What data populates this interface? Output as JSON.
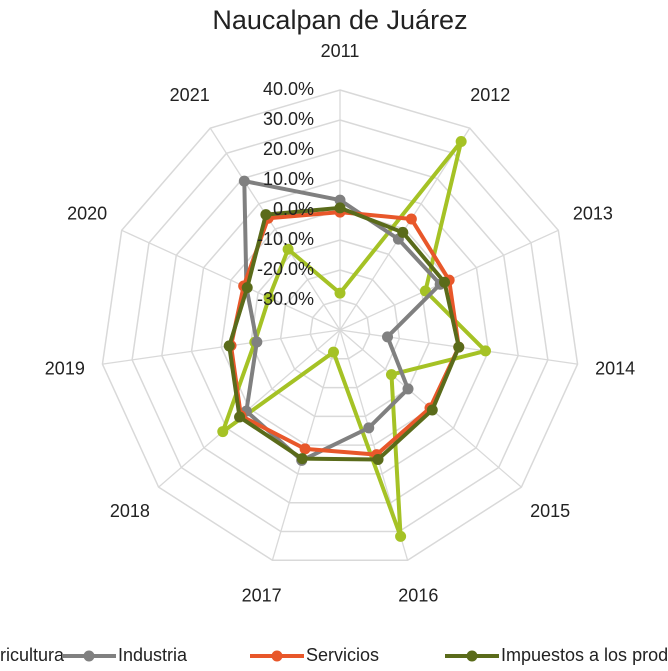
{
  "chart_data": {
    "type": "radar",
    "title": "Naucalpan de Juárez",
    "categories": [
      "2011",
      "2012",
      "2013",
      "2014",
      "2015",
      "2016",
      "2017",
      "2018",
      "2019",
      "2020",
      "2021"
    ],
    "ylim": [
      -40,
      40
    ],
    "yticks": [
      {
        "value": -30,
        "label": "-30.0%"
      },
      {
        "value": -20,
        "label": "-20.0%"
      },
      {
        "value": -10,
        "label": "-10.0%"
      },
      {
        "value": 0,
        "label": "0.0%"
      },
      {
        "value": 10,
        "label": "10.0%"
      },
      {
        "value": 20,
        "label": "20.0%"
      },
      {
        "value": 30,
        "label": "30.0%"
      },
      {
        "value": 40,
        "label": "40.0%"
      }
    ],
    "grid": true,
    "legend": "bottom",
    "series": [
      {
        "name": "Agricultura",
        "color": "#a5c225",
        "values": [
          -27.7,
          34.7,
          -8.7,
          9,
          -17.3,
          31.7,
          -32.3,
          11.7,
          -11.3,
          -14,
          -8
        ]
      },
      {
        "name": "Industria",
        "color": "#808080",
        "values": [
          3.3,
          -4,
          -3.3,
          -24,
          -10,
          -6,
          5.3,
          1.3,
          -12,
          -5.7,
          19
        ]
      },
      {
        "name": "Servicios",
        "color": "#e8572a",
        "values": [
          -0.7,
          4,
          0,
          0,
          -0.3,
          3.3,
          1.3,
          3.7,
          -3.3,
          -4.7,
          4.3
        ]
      },
      {
        "name": "Impuestos a los productos netos",
        "color": "#5a6b1a",
        "values": [
          0.7,
          -1.3,
          -1.7,
          0,
          0.7,
          5,
          4.7,
          4.3,
          -2.7,
          -6,
          5.7
        ]
      }
    ]
  }
}
